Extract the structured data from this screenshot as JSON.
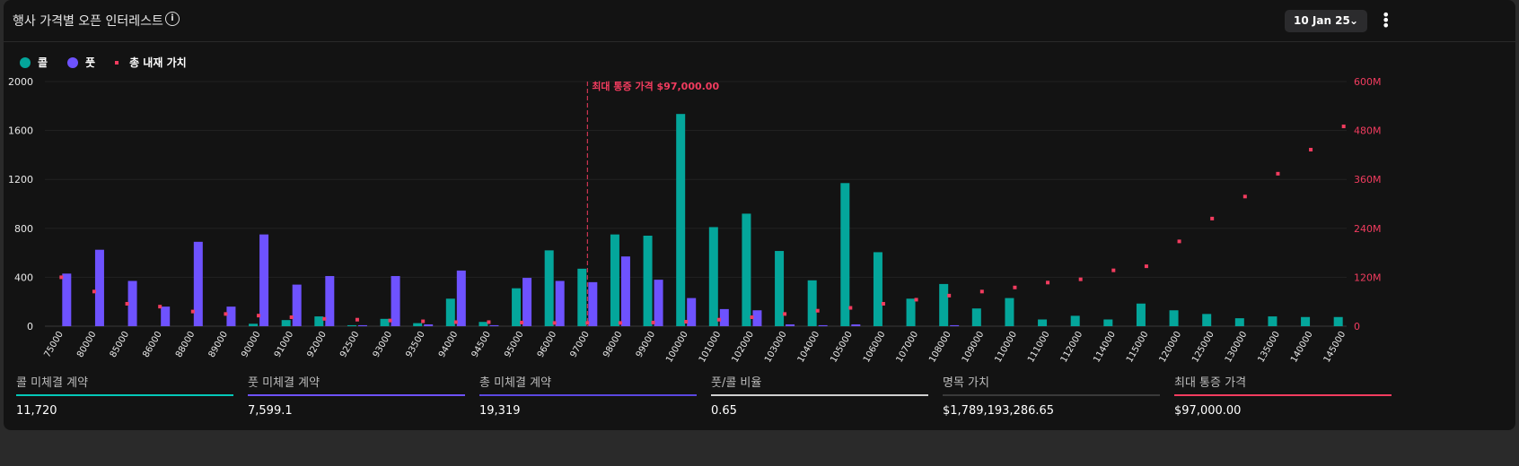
{
  "header": {
    "title": "행사 가격별 오픈 인터레스트",
    "info_icon": "info-icon",
    "date": "10 Jan 25",
    "menu_icon": "more-vertical-icon"
  },
  "legend": {
    "calls": "콜",
    "puts": "풋",
    "intrinsic": "총 내재 가치"
  },
  "colors": {
    "calls": "#04a69b",
    "puts": "#6e52ff",
    "intrinsic": "#f23c5f",
    "total": "#5b47e0",
    "ratio": "#cfcfcf",
    "notional": "#3a3a3a"
  },
  "chart_data": {
    "type": "bar",
    "categories": [
      "75000",
      "80000",
      "85000",
      "86000",
      "88000",
      "89000",
      "90000",
      "91000",
      "92000",
      "92500",
      "93000",
      "93500",
      "94000",
      "94500",
      "95000",
      "96000",
      "97000",
      "98000",
      "99000",
      "100000",
      "101000",
      "102000",
      "103000",
      "104000",
      "105000",
      "106000",
      "107000",
      "108000",
      "109000",
      "110000",
      "111000",
      "112000",
      "114000",
      "115000",
      "120000",
      "125000",
      "130000",
      "135000",
      "140000",
      "145000"
    ],
    "series": [
      {
        "name": "콜",
        "axis": "left",
        "values": [
          0,
          0,
          0,
          0,
          0,
          0,
          20,
          50,
          80,
          8,
          60,
          25,
          225,
          35,
          310,
          620,
          470,
          750,
          740,
          1735,
          810,
          920,
          615,
          375,
          1170,
          605,
          225,
          345,
          145,
          230,
          55,
          85,
          55,
          185,
          130,
          100,
          65,
          80,
          75,
          75
        ]
      },
      {
        "name": "풋",
        "axis": "left",
        "values": [
          430,
          625,
          370,
          160,
          690,
          160,
          750,
          340,
          410,
          8,
          410,
          15,
          455,
          8,
          395,
          370,
          360,
          570,
          380,
          230,
          140,
          130,
          15,
          8,
          15,
          0,
          0,
          8,
          0,
          0,
          0,
          0,
          0,
          0,
          0,
          0,
          0,
          0,
          0,
          0
        ]
      },
      {
        "name": "총 내재 가치",
        "axis": "right",
        "type": "scatter",
        "values": [
          120000000,
          85000000,
          55000000,
          48000000,
          36000000,
          30000000,
          26000000,
          22000000,
          18000000,
          16000000,
          14000000,
          12000000,
          10000000,
          10000000,
          9000000,
          8000000,
          8000000,
          8000000,
          9000000,
          11000000,
          16000000,
          22000000,
          30000000,
          38000000,
          45000000,
          55000000,
          65000000,
          75000000,
          85000000,
          95000000,
          107000000,
          115000000,
          137000000,
          147000000,
          208000000,
          264000000,
          318000000,
          374000000,
          433000000,
          490000000
        ]
      }
    ],
    "y_left": {
      "range": [
        0,
        2000
      ],
      "ticks": [
        "0",
        "400",
        "800",
        "1200",
        "1600",
        "2000"
      ]
    },
    "y_right": {
      "range": [
        0,
        600000000
      ],
      "ticks": [
        "0",
        "120M",
        "240M",
        "360M",
        "480M",
        "600M"
      ]
    },
    "annotation": {
      "category": "97000",
      "label": "최대 통증 가격 $97,000.00"
    },
    "grid": true,
    "legend_position": "top-left"
  },
  "stats": [
    {
      "label": "콜 미체결 계약",
      "value": "11,720",
      "color": "#04c8b8"
    },
    {
      "label": "풋 미체결 계약",
      "value": "7,599.1",
      "color": "#6e52ff"
    },
    {
      "label": "총 미체결 계약",
      "value": "19,319",
      "color": "#5b47e0"
    },
    {
      "label": "풋/콜 비율",
      "value": "0.65",
      "color": "#cfcfcf"
    },
    {
      "label": "명목 가치",
      "value": "$1,789,193,286.65",
      "color": "#3a3a3a"
    },
    {
      "label": "최대 통증 가격",
      "value": "$97,000.00",
      "color": "#f23c5f"
    }
  ]
}
